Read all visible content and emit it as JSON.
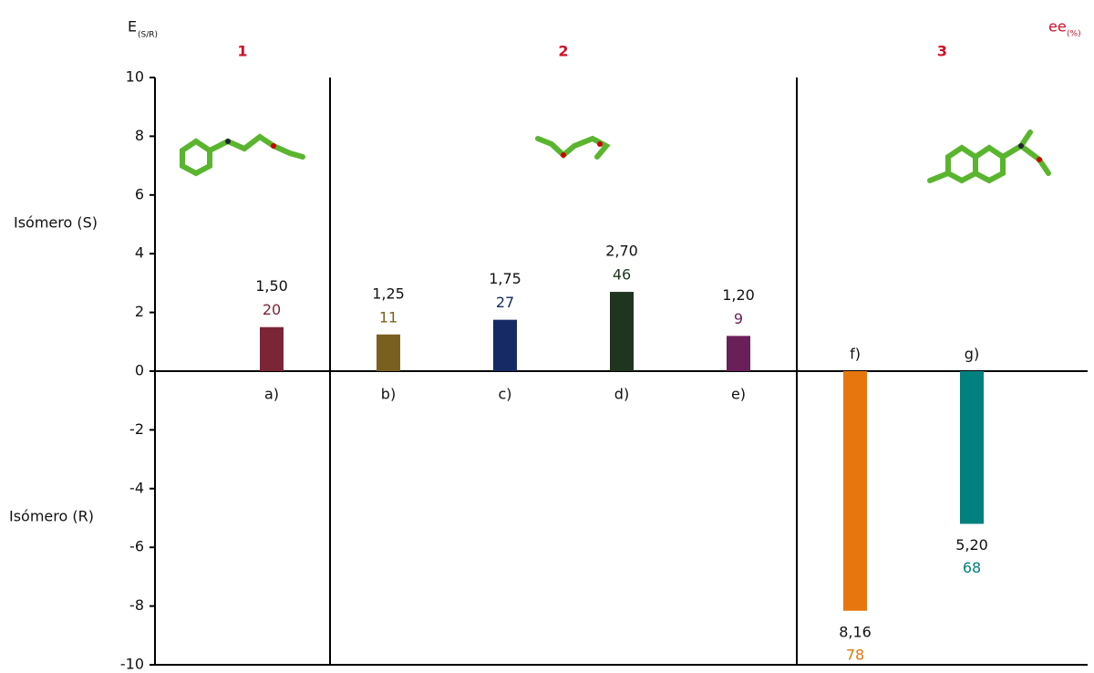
{
  "chart_data": {
    "type": "bar",
    "y_label": "E",
    "y_label_sub": "(S/R)",
    "ee_label": "ee",
    "ee_label_sub": "(%)",
    "upper_label": "Isómero (S)",
    "lower_label": "Isómero (R)",
    "groups": [
      "1",
      "2",
      "3"
    ],
    "categories": [
      "a)",
      "b)",
      "c)",
      "d)",
      "e)",
      "f)",
      "g)"
    ],
    "values": [
      1.5,
      1.25,
      1.75,
      2.7,
      1.2,
      -8.16,
      -5.2
    ],
    "value_labels": [
      "1,50",
      "1,25",
      "1,75",
      "2,70",
      "1,20",
      "8,16",
      "5,20"
    ],
    "ee_values": [
      20,
      11,
      27,
      46,
      9,
      78,
      68
    ],
    "colors": [
      "#7b2637",
      "#7a6020",
      "#162a66",
      "#1f3520",
      "#6a1f5a",
      "#e8760f",
      "#00807f"
    ],
    "ylim": [
      -10,
      10
    ],
    "yticks": [
      -10,
      -8,
      -6,
      -4,
      -2,
      0,
      2,
      4,
      6,
      8,
      10
    ]
  }
}
